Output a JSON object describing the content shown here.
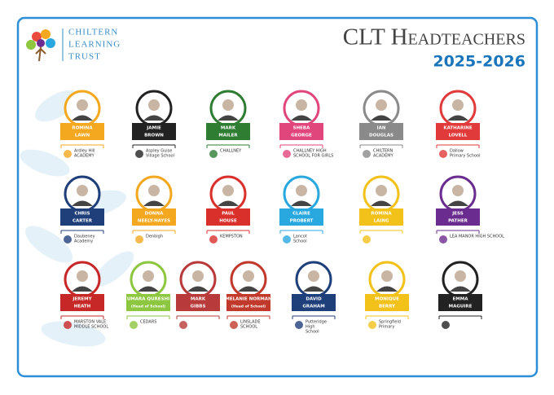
{
  "header": {
    "org": [
      "Chiltern",
      "Learning",
      "Trust"
    ],
    "title": "CLT Headteachers",
    "year": "2025-2026"
  },
  "rows": [
    [
      {
        "name": [
          "ROMINA",
          "LAWN"
        ],
        "color": "#f3a81f",
        "school": [
          "Ardley Hill",
          "ACADEMY"
        ]
      },
      {
        "name": [
          "JAMIE",
          "BROWN"
        ],
        "color": "#222222",
        "school": [
          "Aspley Guise",
          "Village School"
        ]
      },
      {
        "name": [
          "MARK",
          "MAILER"
        ],
        "color": "#2e7d32",
        "school": [
          "CHALLNEY"
        ]
      },
      {
        "name": [
          "SHEBA",
          "GEORGE"
        ],
        "color": "#e0457b",
        "school": [
          "CHALLNEY HIGH",
          "SCHOOL FOR GIRLS"
        ]
      },
      {
        "name": [
          "IAN",
          "DOUGLAS"
        ],
        "color": "#8a8a8a",
        "school": [
          "CHILTERN",
          "ACADEMY"
        ]
      },
      {
        "name": [
          "KATHARINE",
          "LOVELL"
        ],
        "color": "#e03a3a",
        "school": [
          "Dallow",
          "Primary School"
        ]
      }
    ],
    [
      {
        "name": [
          "CHRIS",
          "CARTER"
        ],
        "color": "#1f3f7a",
        "school": [
          "Daubeney",
          "Academy"
        ]
      },
      {
        "name": [
          "DONNA",
          "NEELY-HAYES"
        ],
        "color": "#f3a81f",
        "school": [
          "Denbigh"
        ]
      },
      {
        "name": [
          "PAUL",
          "HOUSE"
        ],
        "color": "#d9302c",
        "school": [
          "KEMPSTON"
        ]
      },
      {
        "name": [
          "CLAIRE",
          "PROBERT"
        ],
        "color": "#29a8e0",
        "school": [
          "Lancot",
          "School"
        ]
      },
      {
        "name": [
          "ROMINA",
          "LAING"
        ],
        "color": "#f2c21b"
      },
      {
        "name": [
          "JESS",
          "PATHER"
        ],
        "color": "#6b2c8f",
        "school": [
          "LEA MANOR HIGH SCHOOL"
        ]
      }
    ],
    [
      {
        "name": [
          "JEREMY",
          "HEATH"
        ],
        "color": "#c62828",
        "school": [
          "MARSTON VALE",
          "MIDDLE SCHOOL"
        ]
      },
      {
        "name": [
          "UMARA QURESHI",
          "(Head of School)"
        ],
        "color": "#8dc63f",
        "school": [
          "CEDARS"
        ]
      },
      {
        "name": [
          "MARK",
          "GIBBS"
        ],
        "color": "#b83a3a"
      },
      {
        "name": [
          "MELANIE NORMAN",
          "(Head of School)"
        ],
        "color": "#c0392b",
        "school": [
          "LINSLADE",
          "SCHOOL"
        ]
      },
      {
        "name": [
          "DAVID",
          "GRAHAM"
        ],
        "color": "#1f3f7a",
        "school": [
          "Putteridge",
          "High",
          "School"
        ]
      },
      {
        "name": [
          "MONIQUE",
          "BERRY"
        ],
        "color": "#f2c21b",
        "school": [
          "Springfield",
          "Primary"
        ]
      },
      {
        "name": [
          "EMMA",
          "MAGUIRE"
        ],
        "color": "#222222"
      }
    ]
  ]
}
